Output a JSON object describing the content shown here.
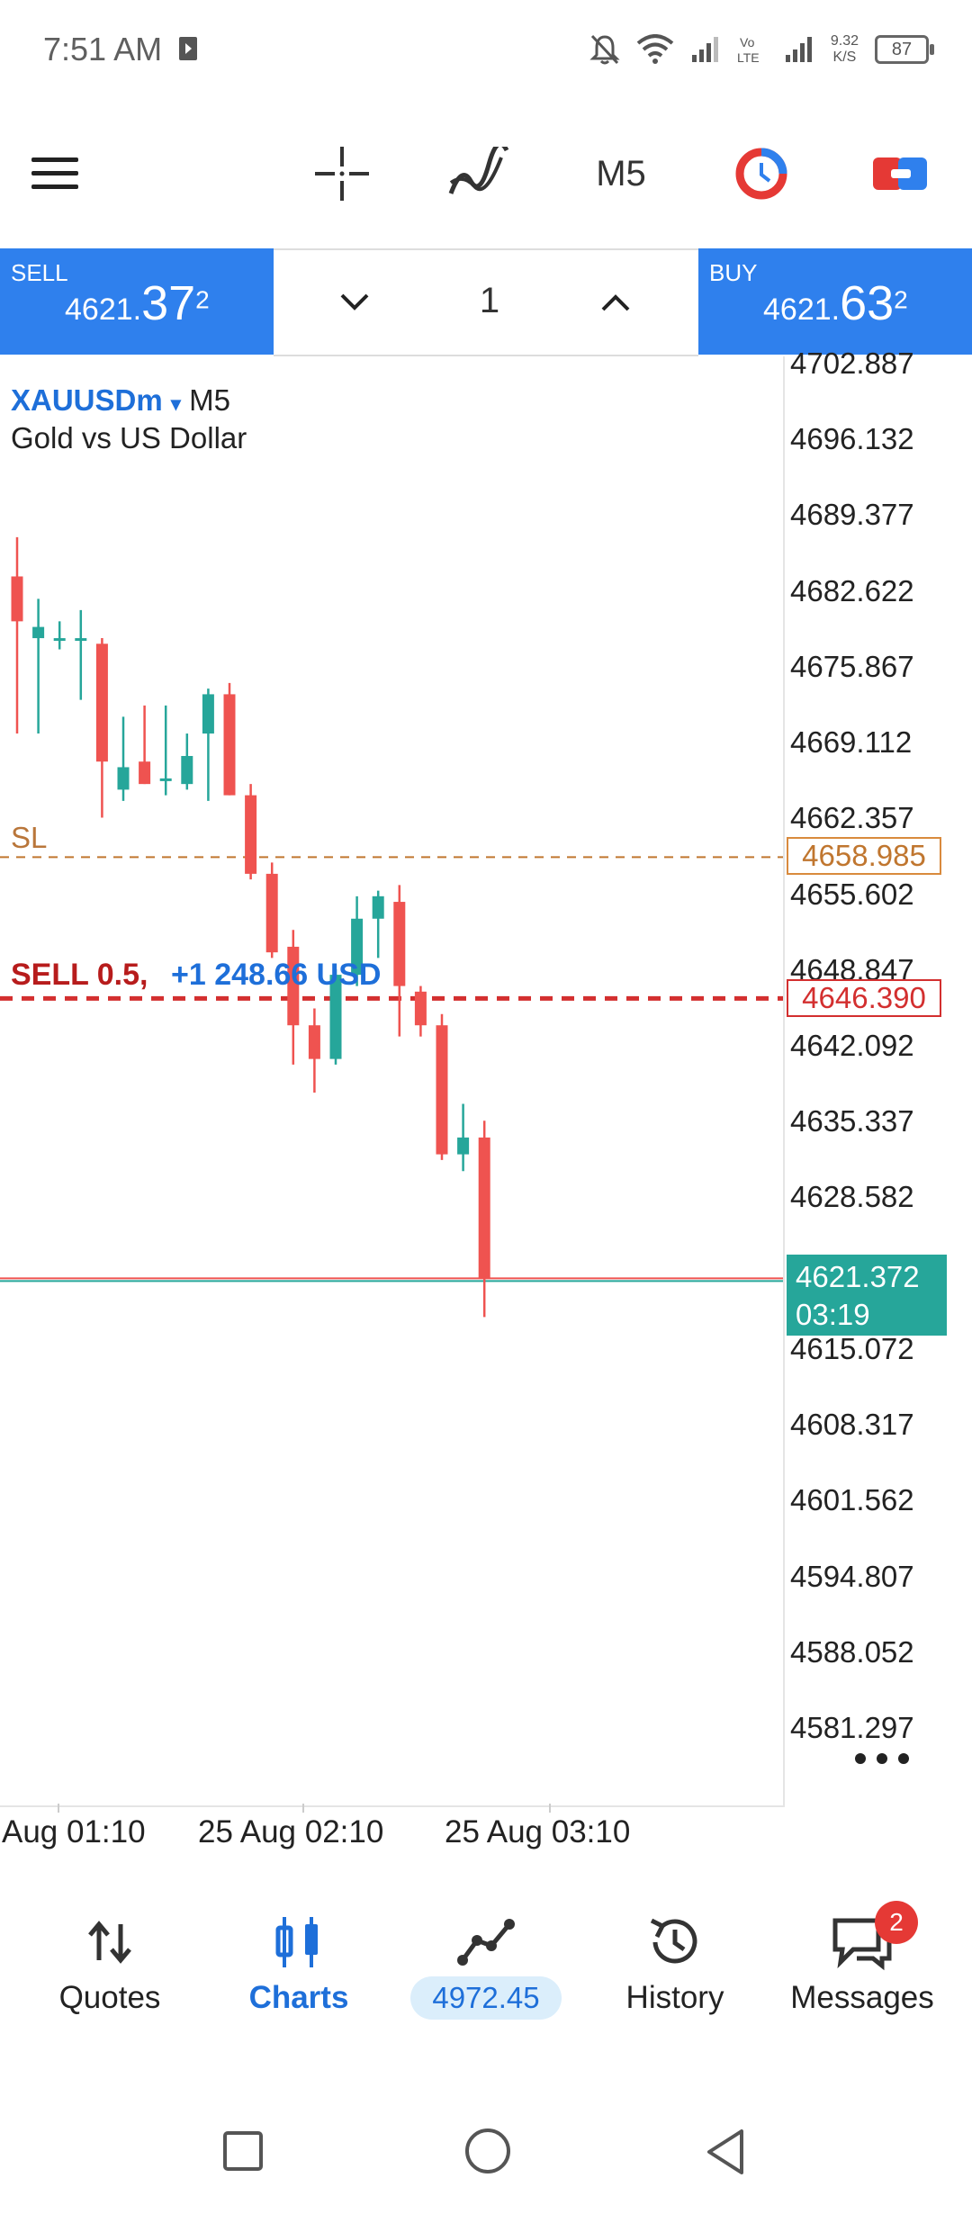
{
  "status_bar": {
    "time": "7:51 AM",
    "speed_value": "9.32",
    "speed_unit": "K/S",
    "battery": "87"
  },
  "toolbar": {
    "timeframe": "M5"
  },
  "trade": {
    "sell_label": "SELL",
    "sell_price_small": "4621.",
    "sell_price_big": "37",
    "sell_price_sup": "2",
    "buy_label": "BUY",
    "buy_price_small": "4621.",
    "buy_price_big": "63",
    "buy_price_sup": "2",
    "lot": "1"
  },
  "chart": {
    "symbol": "XAUUSDm",
    "timeframe": "M5",
    "symbol_name": "Gold vs US Dollar",
    "sl_label": "SL",
    "sl_price": "4658.985",
    "order_label": "SELL 0.5,",
    "order_profit": "+1 248.66 USD",
    "order_price": "4646.390",
    "current_price": "4621.372",
    "countdown": "03:19",
    "colors": {
      "bull": "#26a69a",
      "bear": "#ef5350",
      "sl": "#c0762f",
      "order": "#d32f2f"
    }
  },
  "chart_data": {
    "type": "candlestick",
    "symbol": "XAUUSDm",
    "timeframe": "M5",
    "y_ticks": [
      "4702.887",
      "4696.132",
      "4689.377",
      "4682.622",
      "4675.867",
      "4669.112",
      "4662.357",
      "4655.602",
      "4648.847",
      "4642.092",
      "4635.337",
      "4628.582",
      "4615.072",
      "4608.317",
      "4601.562",
      "4594.807",
      "4588.052",
      "4581.297"
    ],
    "x_ticks": [
      "Aug 01:10",
      "25 Aug 02:10",
      "25 Aug 03:10"
    ],
    "ylim": [
      4578,
      4704
    ],
    "levels": {
      "sl": 4658.985,
      "sell_entry": 4646.39,
      "bid": 4621.372
    },
    "candles": [
      {
        "o": 4684.0,
        "h": 4687.5,
        "l": 4670.0,
        "c": 4680.0
      },
      {
        "o": 4678.5,
        "h": 4682.0,
        "l": 4670.0,
        "c": 4679.5
      },
      {
        "o": 4678.5,
        "h": 4680.0,
        "l": 4677.5,
        "c": 4678.5
      },
      {
        "o": 4678.5,
        "h": 4681.0,
        "l": 4673.0,
        "c": 4678.5
      },
      {
        "o": 4678.0,
        "h": 4678.5,
        "l": 4662.5,
        "c": 4667.5
      },
      {
        "o": 4665.0,
        "h": 4671.5,
        "l": 4664.0,
        "c": 4667.0
      },
      {
        "o": 4667.5,
        "h": 4672.5,
        "l": 4665.5,
        "c": 4665.5
      },
      {
        "o": 4666.0,
        "h": 4672.5,
        "l": 4664.5,
        "c": 4666.0
      },
      {
        "o": 4665.5,
        "h": 4670.0,
        "l": 4665.0,
        "c": 4668.0
      },
      {
        "o": 4670.0,
        "h": 4674.0,
        "l": 4664.0,
        "c": 4673.5
      },
      {
        "o": 4673.5,
        "h": 4674.5,
        "l": 4664.5,
        "c": 4664.5
      },
      {
        "o": 4664.5,
        "h": 4665.5,
        "l": 4657.0,
        "c": 4657.5
      },
      {
        "o": 4657.5,
        "h": 4658.5,
        "l": 4650.0,
        "c": 4650.5
      },
      {
        "o": 4651.0,
        "h": 4652.5,
        "l": 4640.5,
        "c": 4644.0
      },
      {
        "o": 4644.0,
        "h": 4645.5,
        "l": 4638.0,
        "c": 4641.0
      },
      {
        "o": 4641.0,
        "h": 4649.0,
        "l": 4640.5,
        "c": 4648.5
      },
      {
        "o": 4648.5,
        "h": 4655.5,
        "l": 4647.5,
        "c": 4653.5
      },
      {
        "o": 4653.5,
        "h": 4656.0,
        "l": 4650.0,
        "c": 4655.5
      },
      {
        "o": 4655.0,
        "h": 4656.5,
        "l": 4643.0,
        "c": 4647.5
      },
      {
        "o": 4647.0,
        "h": 4647.5,
        "l": 4643.0,
        "c": 4644.0
      },
      {
        "o": 4644.0,
        "h": 4645.0,
        "l": 4632.0,
        "c": 4632.5
      },
      {
        "o": 4632.5,
        "h": 4637.0,
        "l": 4631.0,
        "c": 4634.0
      },
      {
        "o": 4634.0,
        "h": 4635.5,
        "l": 4618.0,
        "c": 4621.4
      }
    ]
  },
  "nav": {
    "items": [
      {
        "label": "Quotes"
      },
      {
        "label": "Charts"
      },
      {
        "label": "4972.45"
      },
      {
        "label": "History"
      },
      {
        "label": "Messages",
        "badge": "2"
      }
    ]
  }
}
